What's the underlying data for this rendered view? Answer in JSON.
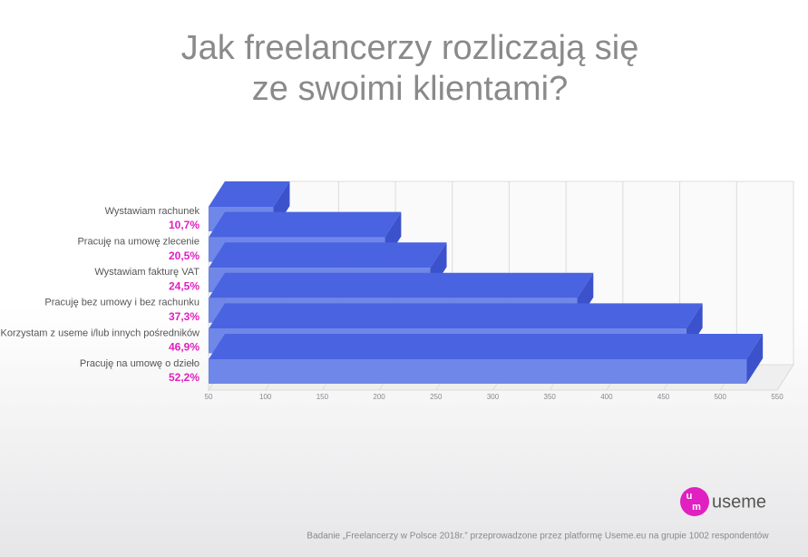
{
  "chart_data": {
    "type": "bar3d",
    "title": [
      "Jak freelancerzy rozliczają się",
      "ze swoimi klientami?"
    ],
    "categories": [
      "Wystawiam rachunek",
      "Pracuję na umowę zlecenie",
      "Wystawiam fakturę VAT",
      "Pracuję bez umowy i bez rachunku",
      "Korzystam z useme i/lub innych pośredników",
      "Pracuję na umowę o dzieło"
    ],
    "values": [
      107,
      205,
      245,
      374,
      470,
      523
    ],
    "value_labels": [
      "10,7%",
      "20,5%",
      "24,5%",
      "37,3%",
      "46,9%",
      "52,2%"
    ],
    "color": "#6f87e8",
    "xlim": [
      50,
      550
    ],
    "xticks": [
      50,
      100,
      150,
      200,
      250,
      300,
      350,
      400,
      450,
      500,
      550
    ],
    "grid": true,
    "logo": "useme",
    "footnote": "Badanie „Freelancerzy w Polsce 2018r.” przeprowadzone przez platformę Useme.eu na grupie 1002 respondentów"
  }
}
